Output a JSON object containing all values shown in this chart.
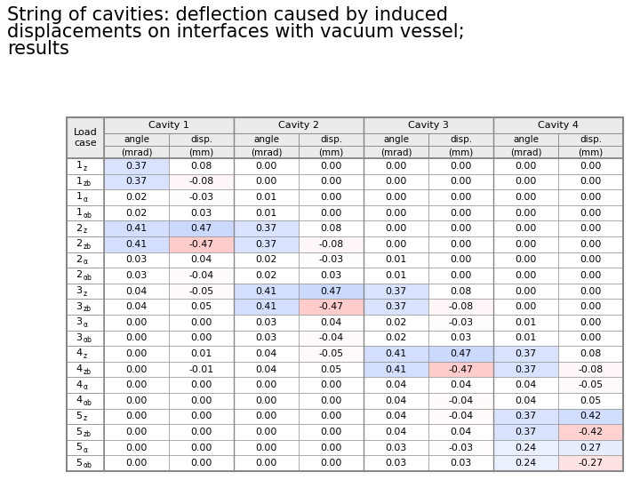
{
  "title_line1": "String of cavities: deflection caused by induced",
  "title_line2": "displacements on interfaces with vacuum vessel;",
  "title_line3": "results",
  "title_fontsize": 15,
  "cavities": [
    "Cavity 1",
    "Cavity 2",
    "Cavity 3",
    "Cavity 4"
  ],
  "data": [
    [
      [
        0.37,
        0.08
      ],
      [
        0.0,
        0.0
      ],
      [
        0.0,
        0.0
      ],
      [
        0.0,
        0.0
      ]
    ],
    [
      [
        0.37,
        -0.08
      ],
      [
        0.0,
        0.0
      ],
      [
        0.0,
        0.0
      ],
      [
        0.0,
        0.0
      ]
    ],
    [
      [
        0.02,
        -0.03
      ],
      [
        0.01,
        0.0
      ],
      [
        0.0,
        0.0
      ],
      [
        0.0,
        0.0
      ]
    ],
    [
      [
        0.02,
        0.03
      ],
      [
        0.01,
        0.0
      ],
      [
        0.0,
        0.0
      ],
      [
        0.0,
        0.0
      ]
    ],
    [
      [
        0.41,
        0.47
      ],
      [
        0.37,
        0.08
      ],
      [
        0.0,
        0.0
      ],
      [
        0.0,
        0.0
      ]
    ],
    [
      [
        0.41,
        -0.47
      ],
      [
        0.37,
        -0.08
      ],
      [
        0.0,
        0.0
      ],
      [
        0.0,
        0.0
      ]
    ],
    [
      [
        0.03,
        0.04
      ],
      [
        0.02,
        -0.03
      ],
      [
        0.01,
        0.0
      ],
      [
        0.0,
        0.0
      ]
    ],
    [
      [
        0.03,
        -0.04
      ],
      [
        0.02,
        0.03
      ],
      [
        0.01,
        0.0
      ],
      [
        0.0,
        0.0
      ]
    ],
    [
      [
        0.04,
        -0.05
      ],
      [
        0.41,
        0.47
      ],
      [
        0.37,
        0.08
      ],
      [
        0.0,
        0.0
      ]
    ],
    [
      [
        0.04,
        0.05
      ],
      [
        0.41,
        -0.47
      ],
      [
        0.37,
        -0.08
      ],
      [
        0.0,
        0.0
      ]
    ],
    [
      [
        0.0,
        0.0
      ],
      [
        0.03,
        0.04
      ],
      [
        0.02,
        -0.03
      ],
      [
        0.01,
        0.0
      ]
    ],
    [
      [
        0.0,
        0.0
      ],
      [
        0.03,
        -0.04
      ],
      [
        0.02,
        0.03
      ],
      [
        0.01,
        0.0
      ]
    ],
    [
      [
        0.0,
        0.01
      ],
      [
        0.04,
        -0.05
      ],
      [
        0.41,
        0.47
      ],
      [
        0.37,
        0.08
      ]
    ],
    [
      [
        0.0,
        -0.01
      ],
      [
        0.04,
        0.05
      ],
      [
        0.41,
        -0.47
      ],
      [
        0.37,
        -0.08
      ]
    ],
    [
      [
        0.0,
        0.0
      ],
      [
        0.0,
        0.0
      ],
      [
        0.04,
        0.04
      ],
      [
        0.04,
        -0.05
      ]
    ],
    [
      [
        0.0,
        0.0
      ],
      [
        0.0,
        0.0
      ],
      [
        0.04,
        -0.04
      ],
      [
        0.04,
        0.05
      ]
    ],
    [
      [
        0.0,
        0.0
      ],
      [
        0.0,
        0.0
      ],
      [
        0.04,
        -0.04
      ],
      [
        0.37,
        0.42
      ]
    ],
    [
      [
        0.0,
        0.0
      ],
      [
        0.0,
        0.0
      ],
      [
        0.04,
        0.04
      ],
      [
        0.37,
        -0.42
      ]
    ],
    [
      [
        0.0,
        0.0
      ],
      [
        0.0,
        0.0
      ],
      [
        0.03,
        -0.03
      ],
      [
        0.24,
        0.27
      ]
    ],
    [
      [
        0.0,
        0.0
      ],
      [
        0.0,
        0.0
      ],
      [
        0.03,
        0.03
      ],
      [
        0.24,
        -0.27
      ]
    ]
  ],
  "bg_white": "#ffffff",
  "header_bg": "#ebebeb",
  "border_color": "#888888",
  "text_color": "#000000",
  "lc_names": [
    "1",
    "1",
    "1",
    "1",
    "2",
    "2",
    "2",
    "2",
    "3",
    "3",
    "3",
    "3",
    "4",
    "4",
    "4",
    "4",
    "5",
    "5",
    "5",
    "5"
  ],
  "lc_subs": [
    "z",
    "zb",
    "α",
    "αb",
    "z",
    "zb",
    "α",
    "αb",
    "z",
    "zb",
    "α",
    "αb",
    "z",
    "zb",
    "α",
    "αb",
    "z",
    "zb",
    "α",
    "αb"
  ]
}
